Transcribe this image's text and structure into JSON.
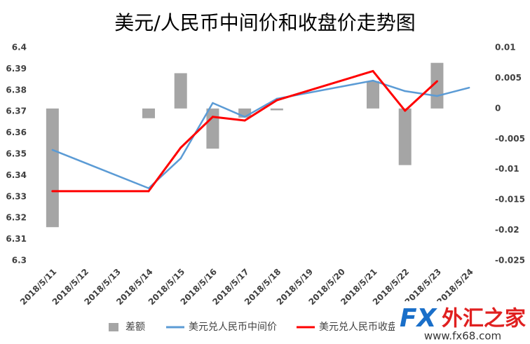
{
  "chart_data": {
    "type": "combo",
    "title": "美元/人民币中间价和收盘价走势图",
    "categories": [
      "2018/5/11",
      "2018/5/12",
      "2018/5/13",
      "2018/5/14",
      "2018/5/15",
      "2018/5/16",
      "2018/5/17",
      "2018/5/18",
      "2018/5/19",
      "2018/5/20",
      "2018/5/21",
      "2018/5/22",
      "2018/5/23",
      "2018/5/24"
    ],
    "series": [
      {
        "name": "差额",
        "type": "bar",
        "axis": "y2",
        "color": "#a5a5a5",
        "values": [
          -0.0195,
          null,
          null,
          -0.0016,
          0.0058,
          -0.0066,
          -0.0015,
          -0.0003,
          null,
          null,
          0.0045,
          -0.0093,
          0.0075,
          null
        ]
      },
      {
        "name": "美元兑人民币中间价",
        "type": "line",
        "color": "#5b9bd5",
        "values": [
          6.352,
          null,
          null,
          6.334,
          6.348,
          6.374,
          6.3675,
          6.376,
          null,
          null,
          6.3845,
          6.3796,
          6.3773,
          6.3812
        ]
      },
      {
        "name": "美元兑人民币收盘价",
        "type": "line",
        "color": "#ff0000",
        "values": [
          6.3326,
          null,
          null,
          6.3326,
          6.353,
          6.3675,
          6.3658,
          6.3753,
          null,
          null,
          6.389,
          6.3704,
          6.3842,
          null
        ]
      }
    ],
    "ylim": [
      6.3,
      6.4
    ],
    "yticks": [
      6.3,
      6.31,
      6.32,
      6.33,
      6.34,
      6.35,
      6.36,
      6.37,
      6.38,
      6.39,
      6.4
    ],
    "y2lim": [
      -0.025,
      0.01
    ],
    "y2ticks": [
      -0.025,
      -0.02,
      -0.015,
      -0.01,
      -0.005,
      0,
      0.005,
      0.01
    ],
    "legend": "bottom",
    "logo": {
      "brand": "FX",
      "name": "外汇之家",
      "url": "www.fx68.com"
    }
  }
}
